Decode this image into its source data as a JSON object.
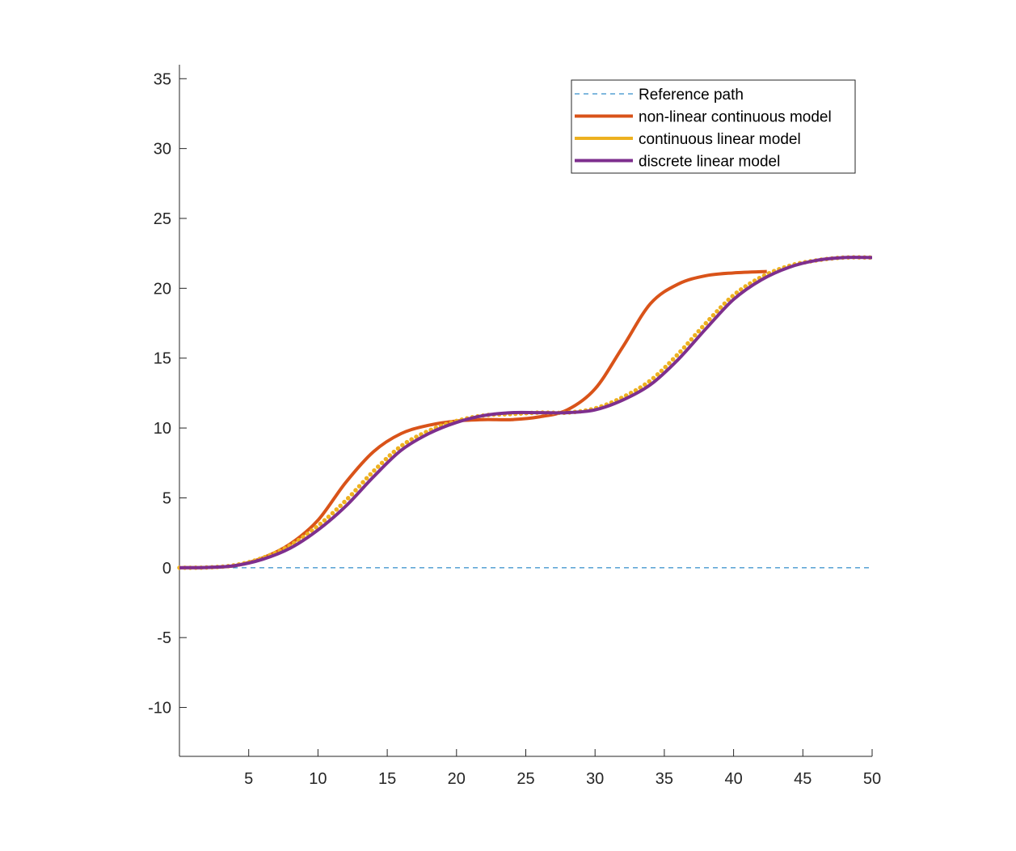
{
  "chart_data": {
    "type": "line",
    "title": "",
    "xlabel": "",
    "ylabel": "",
    "xlim": [
      0,
      50
    ],
    "ylim": [
      -13.5,
      36
    ],
    "xticks": [
      5,
      10,
      15,
      20,
      25,
      30,
      35,
      40,
      45,
      50
    ],
    "yticks": [
      -10,
      -5,
      0,
      5,
      10,
      15,
      20,
      25,
      30,
      35
    ],
    "grid": false,
    "box": false,
    "legend_position": "top-right",
    "series": [
      {
        "name": "Reference path",
        "color": "#0072BD",
        "style": "dashed",
        "x": [
          0,
          50
        ],
        "y": [
          0,
          0
        ]
      },
      {
        "name": "non-linear continuous model",
        "color": "#D95319",
        "style": "solid",
        "x": [
          0,
          2,
          4,
          6,
          8,
          10,
          12,
          14,
          16,
          18,
          20,
          22,
          24,
          26,
          28,
          30,
          32,
          34,
          36,
          38,
          40,
          42.4
        ],
        "y": [
          0,
          0.02,
          0.15,
          0.7,
          1.7,
          3.4,
          6.1,
          8.3,
          9.6,
          10.2,
          10.5,
          10.6,
          10.6,
          10.8,
          11.3,
          12.8,
          15.8,
          18.9,
          20.3,
          20.9,
          21.1,
          21.2
        ]
      },
      {
        "name": "continuous linear model",
        "color": "#EDB120",
        "style": "dotted",
        "x": [
          0,
          2,
          4,
          6,
          8,
          10,
          12,
          14,
          16,
          18,
          20,
          22,
          24,
          26,
          28,
          30,
          32,
          34,
          36,
          38,
          40,
          42,
          44,
          46,
          48,
          50
        ],
        "y": [
          0,
          0.02,
          0.18,
          0.7,
          1.6,
          3.0,
          4.8,
          6.9,
          8.7,
          9.8,
          10.5,
          10.9,
          11.0,
          11.1,
          11.1,
          11.4,
          12.2,
          13.4,
          15.3,
          17.5,
          19.5,
          20.8,
          21.6,
          22.0,
          22.2,
          22.2
        ]
      },
      {
        "name": "discrete linear model",
        "color": "#7E2F8E",
        "style": "solid",
        "x": [
          0,
          2,
          4,
          6,
          8,
          10,
          12,
          14,
          16,
          18,
          20,
          22,
          24,
          26,
          28,
          30,
          32,
          34,
          36,
          38,
          40,
          42,
          44,
          46,
          48,
          50
        ],
        "y": [
          0,
          0.02,
          0.15,
          0.6,
          1.4,
          2.7,
          4.4,
          6.5,
          8.4,
          9.6,
          10.4,
          10.9,
          11.1,
          11.1,
          11.1,
          11.3,
          12.0,
          13.1,
          14.9,
          17.1,
          19.2,
          20.6,
          21.5,
          22.0,
          22.2,
          22.2
        ]
      }
    ]
  }
}
